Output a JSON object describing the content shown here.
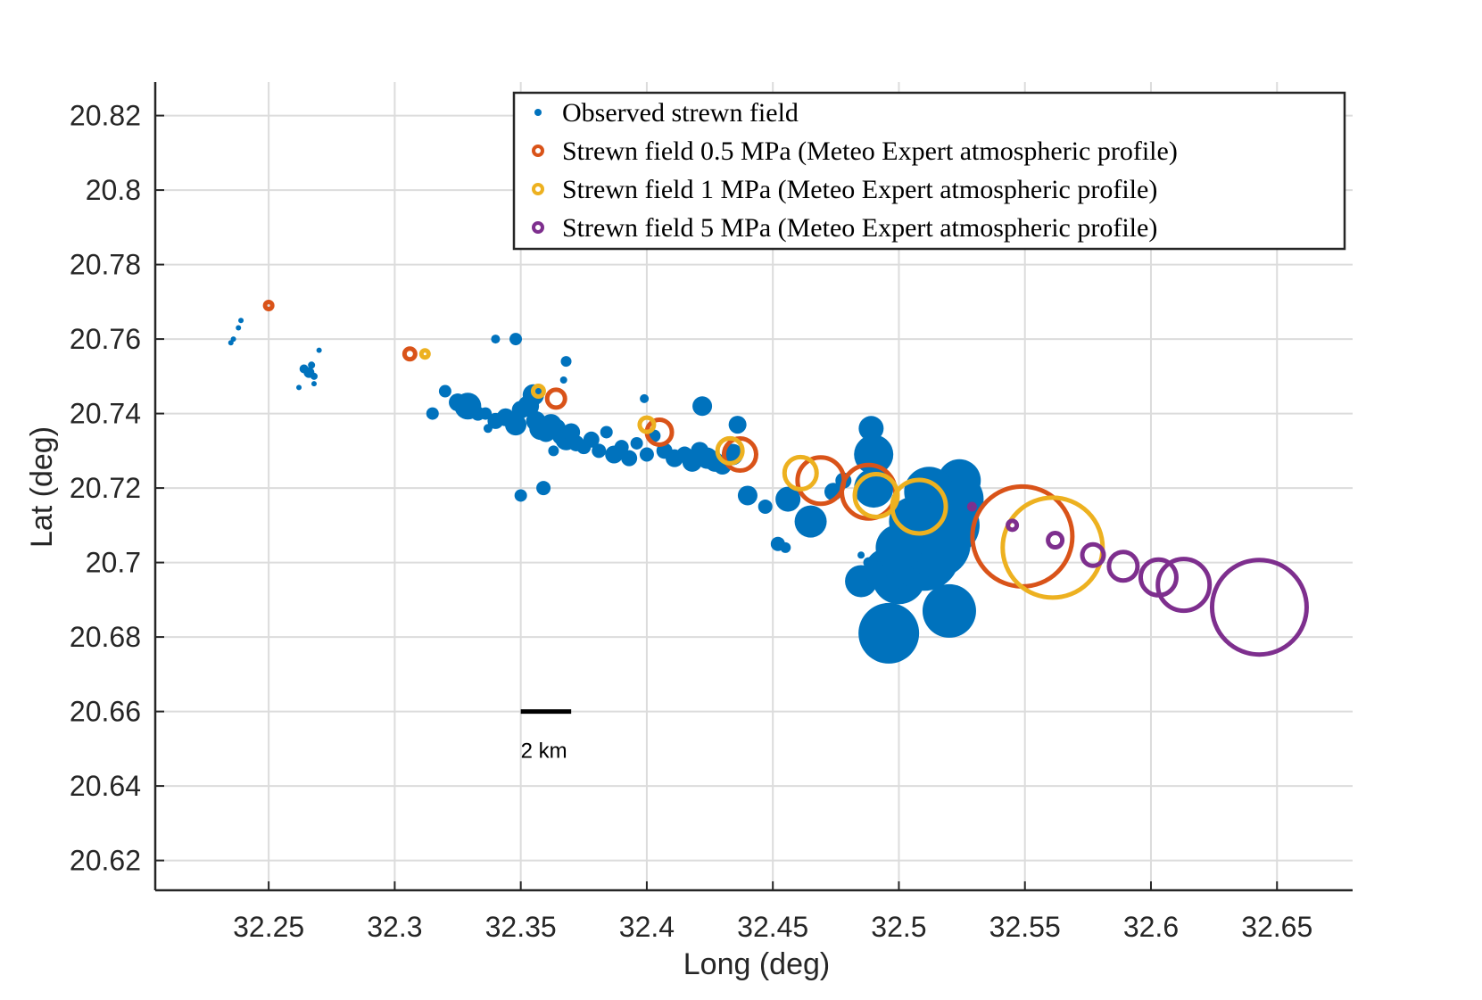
{
  "colors": {
    "observed": "#0072BD",
    "sf_05": "#D95319",
    "sf_1": "#EDB120",
    "sf_5": "#7E2F8E",
    "grid": "#dcdcdc",
    "axis": "#262626"
  },
  "chart_data": {
    "type": "scatter",
    "xlabel": "Long (deg)",
    "ylabel": "Lat (deg)",
    "xlim": [
      32.205,
      32.68
    ],
    "ylim": [
      20.612,
      20.829
    ],
    "xticks": [
      "32.25",
      "32.3",
      "32.35",
      "32.4",
      "32.45",
      "32.5",
      "32.55",
      "32.6",
      "32.65"
    ],
    "yticks": [
      "20.62",
      "20.64",
      "20.66",
      "20.68",
      "20.7",
      "20.72",
      "20.74",
      "20.76",
      "20.78",
      "20.8",
      "20.82"
    ],
    "grid": true,
    "legend_position": "top-right",
    "scale_bar": {
      "label": "2 km",
      "x_start": 32.35,
      "x_end": 32.37,
      "y": 20.66
    },
    "series": [
      {
        "name": "Observed strewn field",
        "marker": "filled",
        "points": [
          [
            32.235,
            20.759,
            3
          ],
          [
            32.236,
            20.76,
            3
          ],
          [
            32.238,
            20.763,
            3
          ],
          [
            32.239,
            20.765,
            3
          ],
          [
            32.262,
            20.747,
            3
          ],
          [
            32.264,
            20.752,
            5
          ],
          [
            32.266,
            20.751,
            6
          ],
          [
            32.267,
            20.753,
            4
          ],
          [
            32.268,
            20.75,
            4
          ],
          [
            32.268,
            20.748,
            3
          ],
          [
            32.27,
            20.757,
            3
          ],
          [
            32.34,
            20.76,
            5
          ],
          [
            32.348,
            20.76,
            7
          ],
          [
            32.368,
            20.754,
            6
          ],
          [
            32.367,
            20.749,
            4
          ],
          [
            32.315,
            20.74,
            7
          ],
          [
            32.32,
            20.746,
            7
          ],
          [
            32.325,
            20.743,
            10
          ],
          [
            32.329,
            20.742,
            15
          ],
          [
            32.333,
            20.74,
            8
          ],
          [
            32.336,
            20.74,
            7
          ],
          [
            32.34,
            20.738,
            9
          ],
          [
            32.344,
            20.739,
            10
          ],
          [
            32.348,
            20.737,
            12
          ],
          [
            32.35,
            20.741,
            10
          ],
          [
            32.353,
            20.742,
            12
          ],
          [
            32.355,
            20.745,
            12
          ],
          [
            32.356,
            20.738,
            11
          ],
          [
            32.358,
            20.736,
            13
          ],
          [
            32.36,
            20.735,
            11
          ],
          [
            32.362,
            20.737,
            12
          ],
          [
            32.364,
            20.736,
            11
          ],
          [
            32.366,
            20.734,
            10
          ],
          [
            32.368,
            20.733,
            12
          ],
          [
            32.37,
            20.735,
            10
          ],
          [
            32.372,
            20.732,
            9
          ],
          [
            32.375,
            20.731,
            8
          ],
          [
            32.378,
            20.733,
            9
          ],
          [
            32.381,
            20.73,
            8
          ],
          [
            32.384,
            20.735,
            7
          ],
          [
            32.387,
            20.729,
            10
          ],
          [
            32.39,
            20.731,
            8
          ],
          [
            32.393,
            20.728,
            9
          ],
          [
            32.396,
            20.732,
            7
          ],
          [
            32.4,
            20.729,
            8
          ],
          [
            32.403,
            20.734,
            7
          ],
          [
            32.407,
            20.73,
            9
          ],
          [
            32.411,
            20.728,
            10
          ],
          [
            32.415,
            20.729,
            9
          ],
          [
            32.418,
            20.727,
            11
          ],
          [
            32.421,
            20.73,
            10
          ],
          [
            32.424,
            20.728,
            12
          ],
          [
            32.427,
            20.727,
            11
          ],
          [
            32.43,
            20.726,
            10
          ],
          [
            32.434,
            20.729,
            12
          ],
          [
            32.436,
            20.737,
            10
          ],
          [
            32.422,
            20.742,
            11
          ],
          [
            32.399,
            20.744,
            5
          ],
          [
            32.35,
            20.718,
            7
          ],
          [
            32.359,
            20.72,
            8
          ],
          [
            32.363,
            20.73,
            6
          ],
          [
            32.337,
            20.736,
            5
          ],
          [
            32.44,
            20.718,
            11
          ],
          [
            32.447,
            20.715,
            8
          ],
          [
            32.452,
            20.705,
            8
          ],
          [
            32.455,
            20.704,
            6
          ],
          [
            32.456,
            20.717,
            14
          ],
          [
            32.465,
            20.711,
            18
          ],
          [
            32.474,
            20.719,
            10
          ],
          [
            32.478,
            20.722,
            9
          ],
          [
            32.485,
            20.702,
            4
          ],
          [
            32.488,
            20.7,
            6
          ],
          [
            32.489,
            20.736,
            14
          ],
          [
            32.49,
            20.729,
            22
          ],
          [
            32.49,
            20.72,
            22
          ],
          [
            32.485,
            20.695,
            18
          ],
          [
            32.495,
            20.698,
            24
          ],
          [
            32.5,
            20.696,
            30
          ],
          [
            32.505,
            20.7,
            32
          ],
          [
            32.51,
            20.702,
            40
          ],
          [
            32.515,
            20.705,
            38
          ],
          [
            32.52,
            20.71,
            34
          ],
          [
            32.523,
            20.717,
            30
          ],
          [
            32.524,
            20.722,
            24
          ],
          [
            32.518,
            20.713,
            30
          ],
          [
            32.512,
            20.719,
            28
          ],
          [
            32.506,
            20.711,
            28
          ],
          [
            32.5,
            20.704,
            26
          ],
          [
            32.496,
            20.681,
            34
          ],
          [
            32.52,
            20.687,
            30
          ]
        ]
      },
      {
        "name": "Strewn field 0.5 MPa (Meteo Expert atmospheric profile)",
        "marker": "open",
        "points": [
          [
            32.25,
            20.769,
            4
          ],
          [
            32.306,
            20.756,
            6
          ],
          [
            32.364,
            20.744,
            10
          ],
          [
            32.405,
            20.735,
            14
          ],
          [
            32.437,
            20.729,
            18
          ],
          [
            32.469,
            20.722,
            26
          ],
          [
            32.488,
            20.719,
            30
          ],
          [
            32.549,
            20.707,
            56
          ]
        ]
      },
      {
        "name": "Strewn field 1 MPa (Meteo Expert atmospheric profile)",
        "marker": "open",
        "points": [
          [
            32.312,
            20.756,
            4
          ],
          [
            32.357,
            20.746,
            6
          ],
          [
            32.4,
            20.737,
            8
          ],
          [
            32.433,
            20.73,
            14
          ],
          [
            32.461,
            20.724,
            18
          ],
          [
            32.491,
            20.718,
            24
          ],
          [
            32.508,
            20.715,
            30
          ],
          [
            32.561,
            20.704,
            56
          ]
        ]
      },
      {
        "name": "Strewn field 5 MPa (Meteo Expert atmospheric profile)",
        "marker": "open",
        "points": [
          [
            32.529,
            20.715,
            3
          ],
          [
            32.545,
            20.71,
            5
          ],
          [
            32.562,
            20.706,
            8
          ],
          [
            32.577,
            20.702,
            12
          ],
          [
            32.589,
            20.699,
            16
          ],
          [
            32.603,
            20.696,
            20
          ],
          [
            32.613,
            20.694,
            29
          ],
          [
            32.643,
            20.688,
            53
          ]
        ]
      }
    ]
  }
}
